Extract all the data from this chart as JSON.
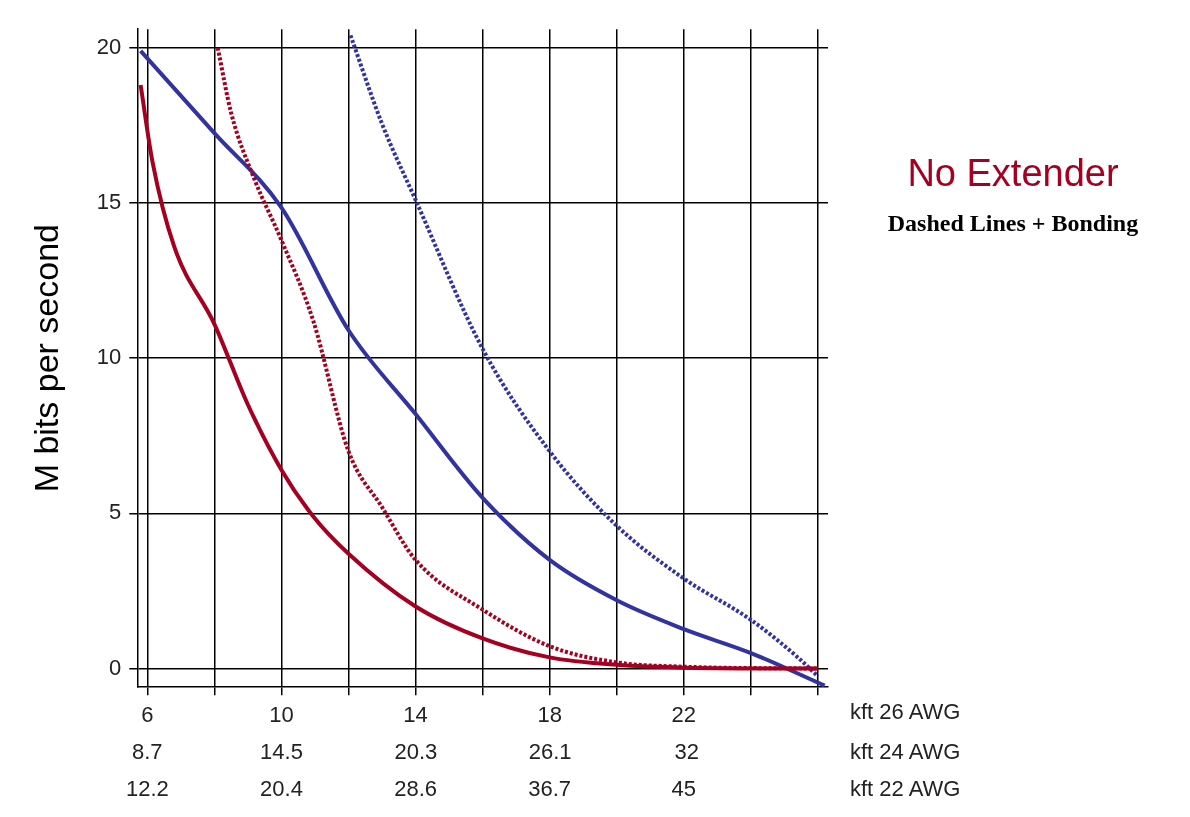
{
  "chart_data": {
    "type": "line",
    "ylabel": "M bits per second",
    "xlabel": "kft 26 AWG",
    "x2label": "kft 24 AWG",
    "x2lim": [
      8.27,
      38.1
    ],
    "x2ticks": [
      8.7,
      14.5,
      20.3,
      26.1,
      32
    ],
    "annotations": [
      "Dashed Lines + Bonding",
      "12.2",
      "20.4",
      "28.6",
      "36.7",
      "45",
      "kft 22 AWG"
    ],
    "xlim": [
      5.7,
      26.3
    ],
    "ylim": [
      -0.6,
      20.6
    ],
    "xticks": [
      6,
      {
        "value": 8,
        "label": null
      },
      10,
      {
        "value": 12,
        "label": null
      },
      14,
      {
        "value": 16,
        "label": null
      },
      18,
      {
        "value": 20,
        "label": null
      },
      22,
      {
        "value": 24,
        "label": null
      },
      {
        "value": 26,
        "label": null
      }
    ],
    "yticks": [
      0,
      5,
      10,
      15,
      20
    ],
    "grid": true,
    "legend": "right",
    "marker": "none",
    "series": [
      {
        "name": "No Extender",
        "color": "#a50021",
        "line_style": "solid",
        "x": [
          5.8,
          6.15,
          6.8,
          8,
          9,
          10,
          10.95,
          12,
          14,
          16,
          18,
          20,
          22,
          26
        ],
        "values": [
          18.8,
          16.35,
          13.6,
          11.1,
          8.5,
          6.4,
          4.9,
          3.7,
          2.0,
          0.97,
          0.36,
          0.12,
          0.03,
          0
        ]
      },
      {
        "color": "#a50021",
        "line_style": "dotted",
        "x": [
          8.1,
          8.5,
          9.2,
          10,
          10.95,
          12,
          13,
          14,
          16,
          18,
          20,
          22,
          26
        ],
        "values": [
          20.0,
          17.9,
          15.75,
          13.8,
          11.2,
          7.0,
          5.2,
          3.5,
          1.9,
          0.72,
          0.2,
          0.06,
          0
        ]
      },
      {
        "color": "#3333a0",
        "line_style": "solid",
        "x": [
          5.8,
          8,
          10,
          12,
          14,
          16,
          18,
          20,
          22,
          24,
          26.2
        ],
        "values": [
          19.9,
          17.25,
          14.85,
          10.9,
          8.2,
          5.5,
          3.5,
          2.2,
          1.27,
          0.5,
          -0.55
        ]
      },
      {
        "color": "#3333a0",
        "line_style": "dotted",
        "x": [
          12.06,
          13,
          14,
          16,
          18,
          20,
          22,
          24,
          25.4,
          26
        ],
        "values": [
          20.4,
          17.55,
          15.1,
          10.3,
          7.0,
          4.6,
          2.9,
          1.57,
          0.36,
          -0.25
        ]
      }
    ]
  }
}
